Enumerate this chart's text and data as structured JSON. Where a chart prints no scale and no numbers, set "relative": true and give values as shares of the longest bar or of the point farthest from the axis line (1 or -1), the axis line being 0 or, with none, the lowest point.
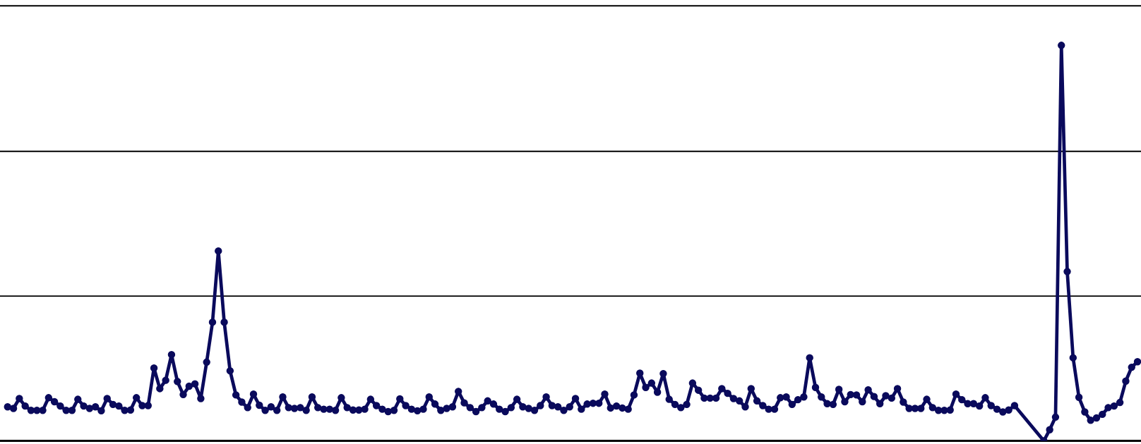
{
  "chart_data": {
    "type": "line",
    "relative": true,
    "marker": "circle",
    "line_style": "solid",
    "categories": [
      null,
      null,
      null,
      null,
      null,
      null,
      null,
      null,
      null,
      null,
      null,
      null,
      null,
      null,
      null,
      null,
      null,
      null,
      null,
      null,
      null,
      null,
      null,
      null,
      null,
      null,
      null,
      null,
      null,
      null,
      null,
      null,
      null,
      null,
      null,
      null,
      null,
      null,
      null,
      null,
      null,
      null,
      null,
      null,
      null,
      null,
      null,
      null,
      null,
      null,
      null,
      null,
      null,
      null,
      null,
      null,
      null,
      null,
      null,
      null,
      null,
      null,
      null,
      null,
      null,
      null,
      null,
      null,
      null,
      null,
      null,
      null,
      null,
      null,
      null,
      null,
      null,
      null,
      null,
      null,
      null,
      null,
      null,
      null,
      null,
      null,
      null,
      null,
      null,
      null,
      null,
      null,
      null,
      null,
      null,
      null,
      null,
      null,
      null,
      null,
      null,
      null,
      null,
      null,
      null,
      null,
      null,
      null,
      null,
      null,
      null,
      null,
      null,
      null,
      null,
      null,
      null,
      null,
      null,
      null,
      null,
      null,
      null,
      null,
      null,
      null,
      null,
      null,
      null,
      null,
      null,
      null,
      null,
      null,
      null,
      null,
      null,
      null,
      null,
      null,
      null,
      null,
      null,
      null,
      null,
      null,
      null,
      null,
      null,
      null,
      null,
      null,
      null,
      null,
      null,
      null,
      null,
      null,
      null,
      null,
      null,
      null,
      null,
      null,
      null,
      null,
      null,
      null,
      null,
      null,
      null,
      null,
      null,
      null,
      null,
      null,
      null,
      null,
      null,
      null,
      null,
      null,
      null,
      null,
      null,
      null,
      null,
      null,
      null,
      null,
      null,
      null,
      null,
      null
    ],
    "series": [
      {
        "color": "#0a0a5c",
        "values": [
          0.086,
          0.082,
          0.107,
          0.088,
          0.077,
          0.077,
          0.077,
          0.109,
          0.099,
          0.088,
          0.077,
          0.077,
          0.105,
          0.088,
          0.082,
          0.086,
          0.076,
          0.107,
          0.092,
          0.088,
          0.077,
          0.078,
          0.109,
          0.089,
          0.089,
          0.184,
          0.132,
          0.153,
          0.218,
          0.15,
          0.117,
          0.138,
          0.144,
          0.107,
          0.199,
          0.3,
          0.48,
          0.3,
          0.177,
          0.116,
          0.098,
          0.084,
          0.118,
          0.09,
          0.077,
          0.086,
          0.077,
          0.111,
          0.084,
          0.082,
          0.084,
          0.077,
          0.111,
          0.084,
          0.08,
          0.08,
          0.077,
          0.109,
          0.084,
          0.078,
          0.078,
          0.08,
          0.105,
          0.089,
          0.08,
          0.074,
          0.077,
          0.106,
          0.089,
          0.08,
          0.076,
          0.08,
          0.111,
          0.093,
          0.077,
          0.082,
          0.086,
          0.125,
          0.096,
          0.084,
          0.074,
          0.084,
          0.101,
          0.093,
          0.08,
          0.074,
          0.084,
          0.105,
          0.086,
          0.082,
          0.077,
          0.089,
          0.111,
          0.089,
          0.086,
          0.077,
          0.086,
          0.107,
          0.08,
          0.093,
          0.095,
          0.095,
          0.118,
          0.083,
          0.088,
          0.083,
          0.08,
          0.116,
          0.171,
          0.135,
          0.146,
          0.123,
          0.17,
          0.105,
          0.092,
          0.084,
          0.092,
          0.146,
          0.128,
          0.108,
          0.108,
          0.108,
          0.132,
          0.12,
          0.107,
          0.101,
          0.086,
          0.132,
          0.101,
          0.089,
          0.08,
          0.08,
          0.109,
          0.111,
          0.092,
          0.104,
          0.111,
          0.21,
          0.135,
          0.111,
          0.094,
          0.092,
          0.13,
          0.099,
          0.117,
          0.116,
          0.099,
          0.129,
          0.112,
          0.094,
          0.114,
          0.108,
          0.132,
          0.098,
          0.082,
          0.082,
          0.082,
          0.105,
          0.084,
          0.077,
          0.077,
          0.078,
          0.118,
          0.104,
          0.094,
          0.094,
          0.088,
          0.109,
          0.089,
          0.08,
          0.073,
          0.078,
          0.089,
          null,
          null,
          null,
          null,
          0.0,
          0.028,
          0.06,
          1.0,
          0.428,
          0.21,
          0.11,
          0.073,
          0.052,
          0.058,
          0.067,
          0.084,
          0.088,
          0.097,
          0.151,
          0.186,
          0.2
        ]
      }
    ],
    "ref_lines": [
      {
        "axis": "y",
        "value": 0.366,
        "color": "#000000"
      },
      {
        "axis": "y",
        "value": 0.732,
        "color": "#000000"
      },
      {
        "axis": "y",
        "value": 1.1,
        "color": "#000000"
      }
    ]
  }
}
